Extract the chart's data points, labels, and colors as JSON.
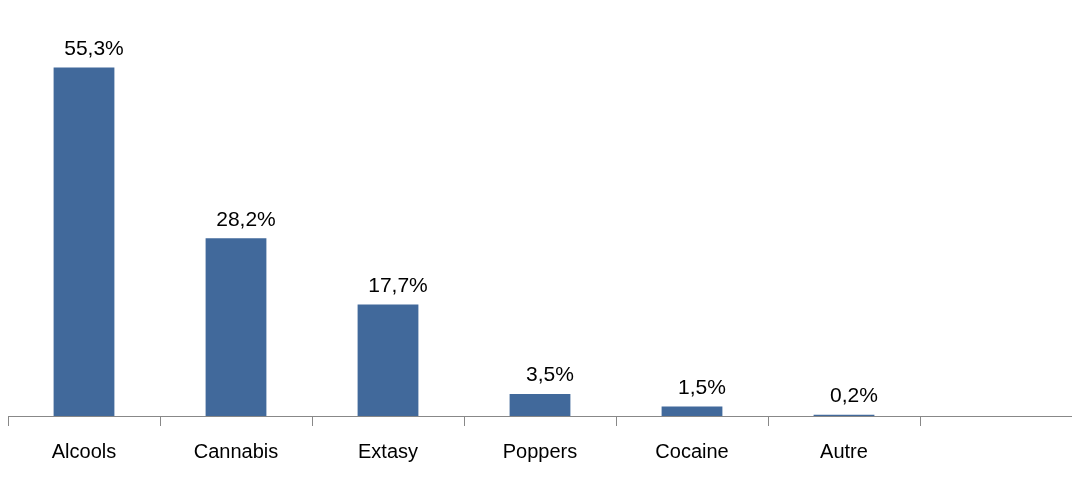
{
  "chart_data": {
    "type": "bar",
    "categories": [
      "Alcools",
      "Cannabis",
      "Extasy",
      "Poppers",
      "Cocaine",
      "Autre",
      null
    ],
    "values": [
      55.3,
      28.2,
      17.7,
      3.5,
      1.5,
      0.2,
      null
    ],
    "value_labels": [
      "55,3%",
      "28,2%",
      "17,7%",
      "3,5%",
      "1,5%",
      "0,2%",
      null
    ],
    "color": "#41699b",
    "grid": false,
    "legend": false,
    "tick_labels": "x"
  }
}
